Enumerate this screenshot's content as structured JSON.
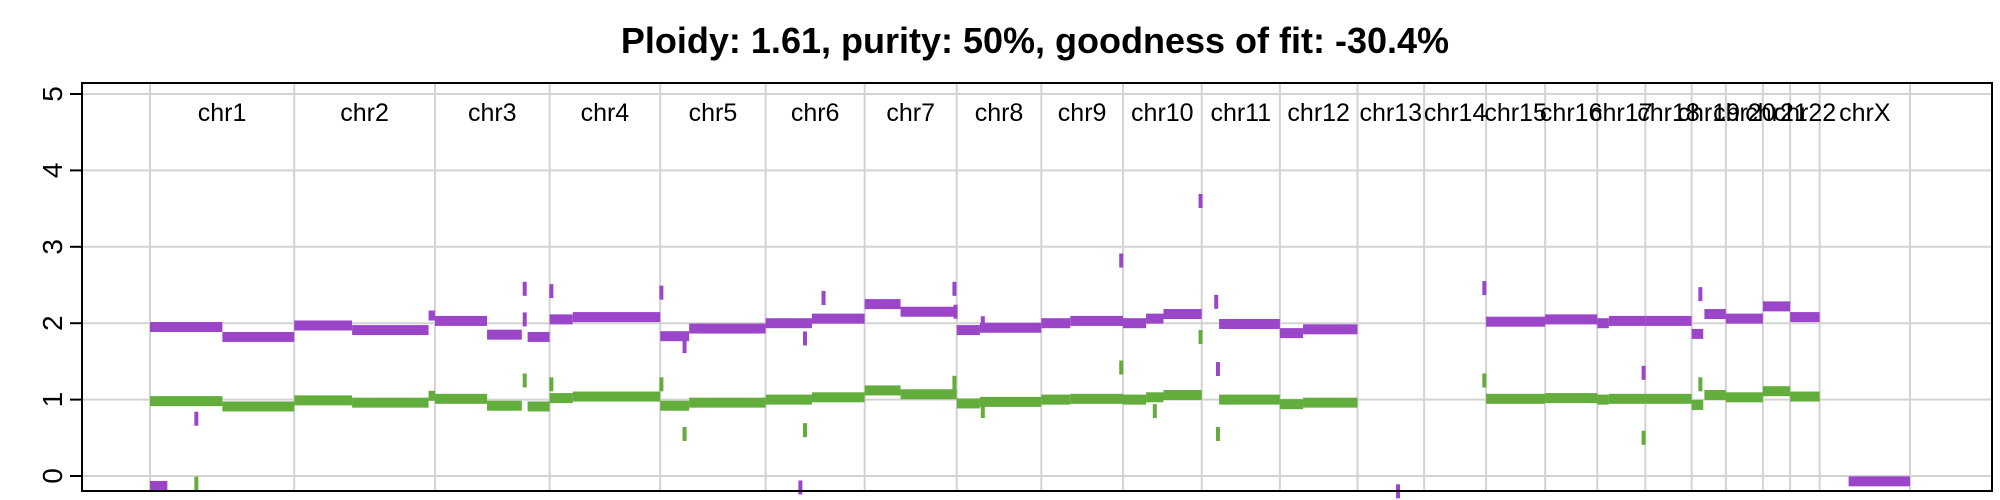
{
  "chart_data": {
    "type": "scatter",
    "title": "Ploidy: 1.61, purity: 50%, goodness of fit: -30.4%",
    "xlabel": "",
    "ylabel": "",
    "ylim": [
      0,
      5
    ],
    "yticks": [
      0,
      1,
      2,
      3,
      4,
      5
    ],
    "grid": true,
    "legend": "none",
    "chromosomes": [
      "chr1",
      "chr2",
      "chr3",
      "chr4",
      "chr5",
      "chr6",
      "chr7",
      "chr8",
      "chr9",
      "chr10",
      "chr11",
      "chr12",
      "chr13",
      "chr14",
      "chr15",
      "chr16",
      "chr17",
      "chr18",
      "chr19",
      "chr20",
      "chr21",
      "chr22",
      "chrX"
    ],
    "chromosome_lengths_mb": [
      249,
      243,
      198,
      191,
      182,
      171,
      159,
      146,
      141,
      136,
      135,
      134,
      115,
      107,
      102,
      90,
      83,
      80,
      59,
      64,
      47,
      51,
      156
    ],
    "series": [
      {
        "color": "#9b45c8",
        "segments": [
          {
            "chr": "chr1",
            "from": 0,
            "to": 125,
            "value": 1.95
          },
          {
            "chr": "chr1",
            "from": 125,
            "to": 249,
            "value": 1.82
          },
          {
            "chr": "chr2",
            "from": 0,
            "to": 100,
            "value": 1.97
          },
          {
            "chr": "chr2",
            "from": 100,
            "to": 232,
            "value": 1.91
          },
          {
            "chr": "chr2",
            "from": 232,
            "to": 243,
            "value": 2.1
          },
          {
            "chr": "chr3",
            "from": 0,
            "to": 90,
            "value": 2.03
          },
          {
            "chr": "chr3",
            "from": 90,
            "to": 150,
            "value": 1.85
          },
          {
            "chr": "chr3",
            "from": 160,
            "to": 198,
            "value": 1.82
          },
          {
            "chr": "chr4",
            "from": 0,
            "to": 40,
            "value": 2.05
          },
          {
            "chr": "chr4",
            "from": 40,
            "to": 191,
            "value": 2.08
          },
          {
            "chr": "chr5",
            "from": 0,
            "to": 50,
            "value": 1.83
          },
          {
            "chr": "chr5",
            "from": 50,
            "to": 182,
            "value": 1.93
          },
          {
            "chr": "chr6",
            "from": 0,
            "to": 80,
            "value": 2.0
          },
          {
            "chr": "chr6",
            "from": 80,
            "to": 171,
            "value": 2.06
          },
          {
            "chr": "chr7",
            "from": 0,
            "to": 62,
            "value": 2.25
          },
          {
            "chr": "chr7",
            "from": 62,
            "to": 159,
            "value": 2.15
          },
          {
            "chr": "chr8",
            "from": 0,
            "to": 40,
            "value": 1.91
          },
          {
            "chr": "chr8",
            "from": 40,
            "to": 146,
            "value": 1.94
          },
          {
            "chr": "chr9",
            "from": 0,
            "to": 50,
            "value": 2.0
          },
          {
            "chr": "chr9",
            "from": 50,
            "to": 141,
            "value": 2.03
          },
          {
            "chr": "chr10",
            "from": 0,
            "to": 40,
            "value": 2.0
          },
          {
            "chr": "chr10",
            "from": 40,
            "to": 70,
            "value": 2.06
          },
          {
            "chr": "chr10",
            "from": 70,
            "to": 136,
            "value": 2.12
          },
          {
            "chr": "chr11",
            "from": 30,
            "to": 135,
            "value": 1.99
          },
          {
            "chr": "chr12",
            "from": 0,
            "to": 40,
            "value": 1.87
          },
          {
            "chr": "chr12",
            "from": 40,
            "to": 134,
            "value": 1.92
          },
          {
            "chr": "chr15",
            "from": 0,
            "to": 102,
            "value": 2.02
          },
          {
            "chr": "chr16",
            "from": 0,
            "to": 90,
            "value": 2.05
          },
          {
            "chr": "chr17",
            "from": 0,
            "to": 20,
            "value": 2.0
          },
          {
            "chr": "chr17",
            "from": 20,
            "to": 83,
            "value": 2.03
          },
          {
            "chr": "chr18",
            "from": 0,
            "to": 80,
            "value": 2.03
          },
          {
            "chr": "chr19",
            "from": 0,
            "to": 20,
            "value": 1.86
          },
          {
            "chr": "chr19",
            "from": 22,
            "to": 59,
            "value": 2.12
          },
          {
            "chr": "chr20",
            "from": 0,
            "to": 64,
            "value": 2.06
          },
          {
            "chr": "chr21",
            "from": 0,
            "to": 47,
            "value": 2.22
          },
          {
            "chr": "chr22",
            "from": 0,
            "to": 51,
            "value": 2.08
          },
          {
            "chr": "chrX",
            "from": 50,
            "to": 156,
            "value": -0.07
          },
          {
            "chr": "chr1",
            "from": 0,
            "to": 30,
            "value": -0.13
          }
        ],
        "outliers": [
          {
            "chr": "chr1",
            "pos": 80,
            "value": 0.75
          },
          {
            "chr": "chr3",
            "pos": 155,
            "value": 2.45
          },
          {
            "chr": "chr3",
            "pos": 155,
            "value": 2.05
          },
          {
            "chr": "chr4",
            "pos": 3,
            "value": 2.42
          },
          {
            "chr": "chr5",
            "pos": 2,
            "value": 2.4
          },
          {
            "chr": "chr5",
            "pos": 42,
            "value": 1.7
          },
          {
            "chr": "chr6",
            "pos": 68,
            "value": 1.8
          },
          {
            "chr": "chr6",
            "pos": 100,
            "value": 2.33
          },
          {
            "chr": "chr6",
            "pos": 60,
            "value": -0.15
          },
          {
            "chr": "chr7",
            "pos": 155,
            "value": 2.45
          },
          {
            "chr": "chr7",
            "pos": 157,
            "value": 2.15
          },
          {
            "chr": "chr8",
            "pos": 45,
            "value": 2.0
          },
          {
            "chr": "chr9",
            "pos": 138,
            "value": 2.82
          },
          {
            "chr": "chr10",
            "pos": 134,
            "value": 3.6
          },
          {
            "chr": "chr11",
            "pos": 25,
            "value": 2.28
          },
          {
            "chr": "chr11",
            "pos": 28,
            "value": 1.4
          },
          {
            "chr": "chr14",
            "pos": 104,
            "value": 2.46
          },
          {
            "chr": "chr17",
            "pos": 80,
            "value": 1.35
          },
          {
            "chr": "chr19",
            "pos": 15,
            "value": 2.38
          },
          {
            "chr": "chr13",
            "pos": 70,
            "value": -0.2
          }
        ]
      },
      {
        "color": "#62ad3b",
        "segments": [
          {
            "chr": "chr1",
            "from": 0,
            "to": 125,
            "value": 0.98
          },
          {
            "chr": "chr1",
            "from": 125,
            "to": 249,
            "value": 0.91
          },
          {
            "chr": "chr2",
            "from": 0,
            "to": 100,
            "value": 0.99
          },
          {
            "chr": "chr2",
            "from": 100,
            "to": 232,
            "value": 0.96
          },
          {
            "chr": "chr2",
            "from": 232,
            "to": 243,
            "value": 1.05
          },
          {
            "chr": "chr3",
            "from": 0,
            "to": 90,
            "value": 1.01
          },
          {
            "chr": "chr3",
            "from": 90,
            "to": 150,
            "value": 0.92
          },
          {
            "chr": "chr3",
            "from": 160,
            "to": 198,
            "value": 0.91
          },
          {
            "chr": "chr4",
            "from": 0,
            "to": 40,
            "value": 1.02
          },
          {
            "chr": "chr4",
            "from": 40,
            "to": 191,
            "value": 1.04
          },
          {
            "chr": "chr5",
            "from": 0,
            "to": 50,
            "value": 0.92
          },
          {
            "chr": "chr5",
            "from": 50,
            "to": 182,
            "value": 0.96
          },
          {
            "chr": "chr6",
            "from": 0,
            "to": 80,
            "value": 1.0
          },
          {
            "chr": "chr6",
            "from": 80,
            "to": 171,
            "value": 1.03
          },
          {
            "chr": "chr7",
            "from": 0,
            "to": 62,
            "value": 1.12
          },
          {
            "chr": "chr7",
            "from": 62,
            "to": 159,
            "value": 1.07
          },
          {
            "chr": "chr8",
            "from": 0,
            "to": 40,
            "value": 0.95
          },
          {
            "chr": "chr8",
            "from": 40,
            "to": 146,
            "value": 0.97
          },
          {
            "chr": "chr9",
            "from": 0,
            "to": 50,
            "value": 1.0
          },
          {
            "chr": "chr9",
            "from": 50,
            "to": 141,
            "value": 1.01
          },
          {
            "chr": "chr10",
            "from": 0,
            "to": 40,
            "value": 1.0
          },
          {
            "chr": "chr10",
            "from": 40,
            "to": 70,
            "value": 1.03
          },
          {
            "chr": "chr10",
            "from": 70,
            "to": 136,
            "value": 1.06
          },
          {
            "chr": "chr11",
            "from": 30,
            "to": 135,
            "value": 1.0
          },
          {
            "chr": "chr12",
            "from": 0,
            "to": 40,
            "value": 0.94
          },
          {
            "chr": "chr12",
            "from": 40,
            "to": 134,
            "value": 0.96
          },
          {
            "chr": "chr15",
            "from": 0,
            "to": 102,
            "value": 1.01
          },
          {
            "chr": "chr16",
            "from": 0,
            "to": 90,
            "value": 1.02
          },
          {
            "chr": "chr17",
            "from": 0,
            "to": 20,
            "value": 1.0
          },
          {
            "chr": "chr17",
            "from": 20,
            "to": 83,
            "value": 1.01
          },
          {
            "chr": "chr18",
            "from": 0,
            "to": 80,
            "value": 1.01
          },
          {
            "chr": "chr19",
            "from": 0,
            "to": 20,
            "value": 0.93
          },
          {
            "chr": "chr19",
            "from": 22,
            "to": 59,
            "value": 1.06
          },
          {
            "chr": "chr20",
            "from": 0,
            "to": 64,
            "value": 1.03
          },
          {
            "chr": "chr21",
            "from": 0,
            "to": 47,
            "value": 1.11
          },
          {
            "chr": "chr22",
            "from": 0,
            "to": 51,
            "value": 1.04
          }
        ],
        "outliers": [
          {
            "chr": "chr1",
            "pos": 80,
            "value": -0.1
          },
          {
            "chr": "chr3",
            "pos": 155,
            "value": 1.25
          },
          {
            "chr": "chr4",
            "pos": 3,
            "value": 1.2
          },
          {
            "chr": "chr5",
            "pos": 2,
            "value": 1.2
          },
          {
            "chr": "chr5",
            "pos": 42,
            "value": 0.55
          },
          {
            "chr": "chr6",
            "pos": 68,
            "value": 0.6
          },
          {
            "chr": "chr7",
            "pos": 155,
            "value": 1.22
          },
          {
            "chr": "chr8",
            "pos": 45,
            "value": 0.85
          },
          {
            "chr": "chr9",
            "pos": 138,
            "value": 1.42
          },
          {
            "chr": "chr10",
            "pos": 134,
            "value": 1.82
          },
          {
            "chr": "chr10",
            "pos": 55,
            "value": 0.85
          },
          {
            "chr": "chr11",
            "pos": 28,
            "value": 0.55
          },
          {
            "chr": "chr14",
            "pos": 104,
            "value": 1.25
          },
          {
            "chr": "chr17",
            "pos": 80,
            "value": 0.5
          },
          {
            "chr": "chr19",
            "pos": 15,
            "value": 1.2
          }
        ]
      }
    ]
  }
}
